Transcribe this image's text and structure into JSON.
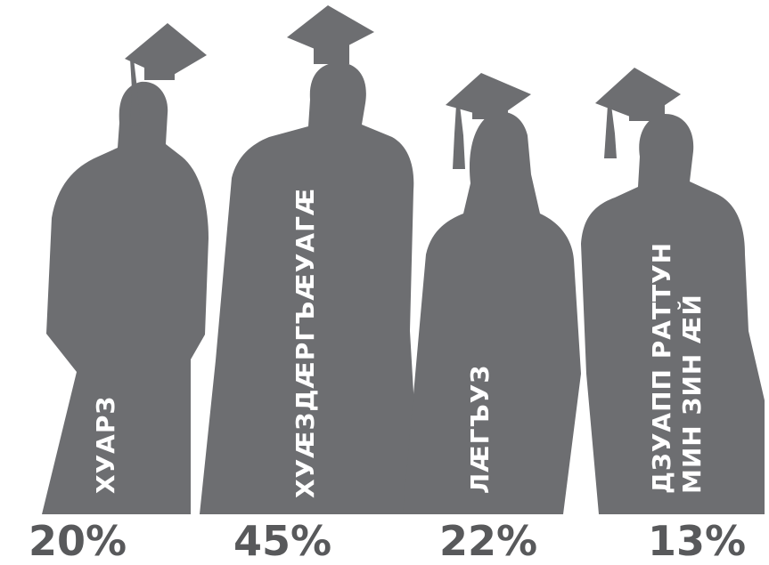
{
  "colors": {
    "silhouette": "#6d6e71",
    "percent_text": "#58595b",
    "label_text": "#ffffff",
    "background": "#ffffff"
  },
  "chart_data": {
    "type": "bar",
    "categories": [
      "ХУАРЗ",
      "ХУӔЗДӔРГЪӔУАГӔ",
      "ЛӔГЪУЗ",
      "ДЗУАПП РАТТУН МИН ЗИН ӔЙ"
    ],
    "values": [
      20,
      45,
      22,
      13
    ],
    "value_labels": [
      "20%",
      "45%",
      "22%",
      "13%"
    ],
    "unit": "%",
    "title": ""
  }
}
